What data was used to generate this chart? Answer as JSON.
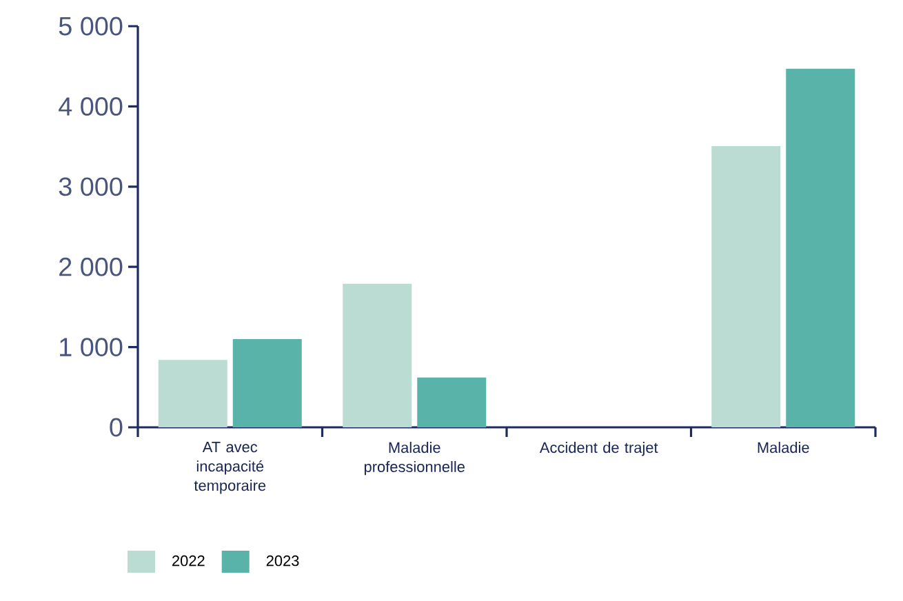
{
  "chart_data": {
    "type": "bar",
    "categories": [
      "AT avec incapacité temporaire",
      "Maladie professionnelle",
      "Accident de trajet",
      "Maladie"
    ],
    "series": [
      {
        "name": "2022",
        "color": "#badcd2",
        "values": [
          840,
          1790,
          0,
          3505
        ]
      },
      {
        "name": "2023",
        "color": "#5ab3a8",
        "values": [
          1100,
          620,
          0,
          4470
        ]
      }
    ],
    "ylim": [
      0,
      5000
    ],
    "yticks": [
      0,
      {
        "value": 1000,
        "label": "1 000"
      },
      {
        "value": 2000,
        "label": "2 000"
      },
      {
        "value": 3000,
        "label": "3 000"
      },
      {
        "value": 4000,
        "label": "4 000"
      },
      {
        "value": 5000,
        "label": "5 000"
      }
    ],
    "grid": false,
    "legend": "bottom left"
  }
}
